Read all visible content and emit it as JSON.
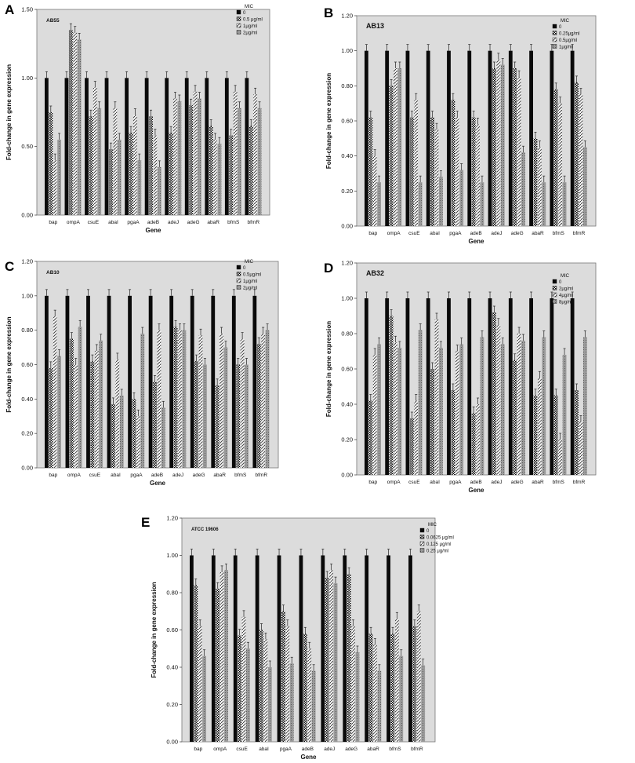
{
  "figure": {
    "panels": [
      "A",
      "B",
      "C",
      "D",
      "E"
    ]
  },
  "chart_data": [
    {
      "panel": "A",
      "type": "bar",
      "title": "AB55",
      "xlabel": "Gene",
      "ylabel": "Fold-change in gene expression",
      "ylim": [
        0,
        1.5
      ],
      "yticks": [
        0.0,
        0.5,
        1.0,
        1.5
      ],
      "ytick_labels": [
        "0.00",
        "0.50",
        "1.00",
        "1.50"
      ],
      "legend_title": "MIC",
      "legend_placement": "right",
      "categories": [
        "bap",
        "ompA",
        "csuE",
        "abaI",
        "pgaA",
        "adeB",
        "adeJ",
        "adeG",
        "abaR",
        "bfmS",
        "bfmR"
      ],
      "series": [
        {
          "name": "0",
          "values": [
            1.0,
            1.0,
            1.0,
            1.0,
            1.0,
            1.0,
            1.0,
            1.0,
            1.0,
            1.0,
            1.0
          ]
        },
        {
          "name": "0.5 μg/ml",
          "values": [
            0.75,
            1.35,
            0.72,
            0.48,
            0.6,
            0.72,
            0.6,
            0.8,
            0.65,
            0.58,
            0.65
          ]
        },
        {
          "name": "1μg/ml",
          "values": [
            0.4,
            1.33,
            0.93,
            0.78,
            0.73,
            0.58,
            0.85,
            0.9,
            0.55,
            0.9,
            0.88
          ]
        },
        {
          "name": "2μg/ml",
          "values": [
            0.55,
            1.28,
            0.78,
            0.55,
            0.4,
            0.35,
            0.83,
            0.85,
            0.52,
            0.78,
            0.78
          ]
        }
      ]
    },
    {
      "panel": "B",
      "type": "bar",
      "title": "AB13",
      "xlabel": "Gene",
      "ylabel": "Fold-change in gene expression",
      "ylim": [
        0,
        1.2
      ],
      "yticks": [
        0.0,
        0.2,
        0.4,
        0.6,
        0.8,
        1.0,
        1.2
      ],
      "ytick_labels": [
        "0.00",
        "0.20",
        "0.40",
        "0.60",
        "0.80",
        "1.00",
        "1.20"
      ],
      "legend_title": "MIC",
      "legend_placement": "right",
      "categories": [
        "bap",
        "ompA",
        "csuE",
        "abaI",
        "pgaA",
        "adeB",
        "adeJ",
        "adeG",
        "abaR",
        "bfmS",
        "bfmR"
      ],
      "series": [
        {
          "name": "0",
          "values": [
            1.0,
            1.0,
            1.0,
            1.0,
            1.0,
            1.0,
            1.0,
            1.0,
            1.0,
            1.0,
            1.0
          ]
        },
        {
          "name": "0.25μg/ml",
          "values": [
            0.62,
            0.8,
            0.62,
            0.62,
            0.72,
            0.62,
            0.9,
            0.9,
            0.5,
            0.78,
            0.82
          ]
        },
        {
          "name": "0.5μg/ml",
          "values": [
            0.4,
            0.9,
            0.72,
            0.55,
            0.62,
            0.58,
            0.95,
            0.85,
            0.45,
            0.7,
            0.75
          ]
        },
        {
          "name": "1μg/ml",
          "values": [
            0.25,
            0.9,
            0.25,
            0.28,
            0.32,
            0.25,
            0.92,
            0.42,
            0.25,
            0.25,
            0.45
          ]
        }
      ]
    },
    {
      "panel": "C",
      "type": "bar",
      "title": "AB10",
      "xlabel": "Gene",
      "ylabel": "Fold-change in gene expression",
      "ylim": [
        0,
        1.2
      ],
      "yticks": [
        0.0,
        0.2,
        0.4,
        0.6,
        0.8,
        1.0,
        1.2
      ],
      "ytick_labels": [
        "0.00",
        "0.20",
        "0.40",
        "0.60",
        "0.80",
        "1.00",
        "1.20"
      ],
      "legend_title": "MIC",
      "legend_placement": "right",
      "categories": [
        "bap",
        "ompA",
        "csuE",
        "abaI",
        "pgaA",
        "adeB",
        "adeJ",
        "adeG",
        "abaR",
        "bfmS",
        "bfmR"
      ],
      "series": [
        {
          "name": "0",
          "values": [
            1.0,
            1.0,
            1.0,
            1.0,
            1.0,
            1.0,
            1.0,
            1.0,
            1.0,
            1.0,
            1.0
          ]
        },
        {
          "name": "0.5μg/ml",
          "values": [
            0.58,
            0.75,
            0.62,
            0.37,
            0.4,
            0.5,
            0.82,
            0.62,
            0.48,
            0.6,
            0.72
          ]
        },
        {
          "name": "1μg/ml",
          "values": [
            0.88,
            0.6,
            0.68,
            0.63,
            0.3,
            0.8,
            0.8,
            0.77,
            0.78,
            0.75,
            0.78
          ]
        },
        {
          "name": "2μg/ml",
          "values": [
            0.65,
            0.82,
            0.74,
            0.42,
            0.78,
            0.35,
            0.8,
            0.6,
            0.7,
            0.6,
            0.8
          ]
        }
      ]
    },
    {
      "panel": "D",
      "type": "bar",
      "title": "AB32",
      "xlabel": "Gene",
      "ylabel": "Fold-change in gene expression",
      "ylim": [
        0,
        1.2
      ],
      "yticks": [
        0.0,
        0.2,
        0.4,
        0.6,
        0.8,
        1.0,
        1.2
      ],
      "ytick_labels": [
        "0.00",
        "0.20",
        "0.40",
        "0.60",
        "0.80",
        "1.00",
        "1.20"
      ],
      "legend_title": "MIC",
      "legend_placement": "right",
      "categories": [
        "bap",
        "ompA",
        "csuE",
        "abaI",
        "pgaA",
        "adeB",
        "adeJ",
        "adeG",
        "abaR",
        "bfmS",
        "bfmR"
      ],
      "series": [
        {
          "name": "0",
          "values": [
            1.0,
            1.0,
            1.0,
            1.0,
            1.0,
            1.0,
            1.0,
            1.0,
            1.0,
            1.0,
            1.0
          ]
        },
        {
          "name": "2μg/ml",
          "values": [
            0.42,
            0.9,
            0.32,
            0.6,
            0.48,
            0.35,
            0.92,
            0.65,
            0.45,
            0.45,
            0.48
          ]
        },
        {
          "name": "4μg/ml",
          "values": [
            0.68,
            0.75,
            0.42,
            0.88,
            0.7,
            0.4,
            0.85,
            0.8,
            0.55,
            0.2,
            0.3
          ]
        },
        {
          "name": "8μg/ml",
          "values": [
            0.74,
            0.72,
            0.82,
            0.72,
            0.74,
            0.78,
            0.74,
            0.76,
            0.78,
            0.68,
            0.78
          ]
        }
      ]
    },
    {
      "panel": "E",
      "type": "bar",
      "title": "ATCC 19606",
      "xlabel": "Gene",
      "ylabel": "Fold-change in gene expression",
      "ylim": [
        0,
        1.2
      ],
      "yticks": [
        0.0,
        0.2,
        0.4,
        0.6,
        0.8,
        1.0,
        1.2
      ],
      "ytick_labels": [
        "0.00",
        "0.20",
        "0.40",
        "0.60",
        "0.80",
        "1.00",
        "1.20"
      ],
      "legend_title": "MIC",
      "legend_placement": "right",
      "categories": [
        "bap",
        "ompA",
        "csuE",
        "abaI",
        "pgaA",
        "adeB",
        "adeJ",
        "adeG",
        "abaR",
        "bfmS",
        "bfmR"
      ],
      "series": [
        {
          "name": "0",
          "values": [
            1.0,
            1.0,
            1.0,
            1.0,
            1.0,
            1.0,
            1.0,
            1.0,
            1.0,
            1.0,
            1.0
          ]
        },
        {
          "name": "0.0625 μg/ml",
          "values": [
            0.84,
            0.82,
            0.57,
            0.6,
            0.7,
            0.58,
            0.88,
            0.9,
            0.58,
            0.58,
            0.62
          ]
        },
        {
          "name": "0.125 μg/ml",
          "values": [
            0.62,
            0.91,
            0.67,
            0.55,
            0.62,
            0.5,
            0.92,
            0.62,
            0.52,
            0.66,
            0.7
          ]
        },
        {
          "name": "0.25 μg/ml",
          "values": [
            0.46,
            0.92,
            0.5,
            0.4,
            0.42,
            0.38,
            0.85,
            0.48,
            0.38,
            0.46,
            0.41
          ]
        }
      ]
    }
  ]
}
